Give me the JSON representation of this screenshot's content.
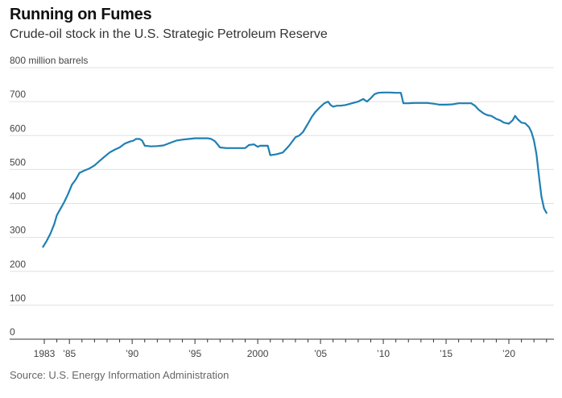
{
  "header": {
    "title": "Running on Fumes",
    "subtitle": "Crude-oil stock in the U.S. Strategic Petroleum Reserve"
  },
  "source": "Source: U.S. Energy Information Administration",
  "colors": {
    "line": "#1f7fb4",
    "grid": "#e0e0e0",
    "axis": "#333333"
  },
  "chart_data": {
    "type": "line",
    "title": "Running on Fumes",
    "subtitle": "Crude-oil stock in the U.S. Strategic Petroleum Reserve",
    "ylabel": "million barrels",
    "ylim": [
      0,
      800
    ],
    "xlim": [
      1982,
      2023.5
    ],
    "grid": "horizontal",
    "y_ticks": [
      {
        "value": 800,
        "label": "800 million barrels"
      },
      {
        "value": 700,
        "label": "700"
      },
      {
        "value": 600,
        "label": "600"
      },
      {
        "value": 500,
        "label": "500"
      },
      {
        "value": 400,
        "label": "400"
      },
      {
        "value": 300,
        "label": "300"
      },
      {
        "value": 200,
        "label": "200"
      },
      {
        "value": 100,
        "label": "100"
      },
      {
        "value": 0,
        "label": "0"
      }
    ],
    "x_ticks": [
      {
        "value": 1983,
        "label": "1983"
      },
      {
        "value": 1985,
        "label": "’85"
      },
      {
        "value": 1990,
        "label": "’90"
      },
      {
        "value": 1995,
        "label": "’95"
      },
      {
        "value": 2000,
        "label": "2000"
      },
      {
        "value": 2005,
        "label": "’05"
      },
      {
        "value": 2010,
        "label": "’10"
      },
      {
        "value": 2015,
        "label": "’15"
      },
      {
        "value": 2020,
        "label": "’20"
      }
    ],
    "series": [
      {
        "x": [
          1982.9,
          1983.2,
          1983.5,
          1983.8,
          1984.0,
          1984.3,
          1984.6,
          1984.9,
          1985.2,
          1985.5,
          1985.8,
          1986.2,
          1986.6,
          1987.0,
          1987.4,
          1987.8,
          1988.2,
          1988.6,
          1989.0,
          1989.4,
          1989.8,
          1990.1,
          1990.3,
          1990.6,
          1990.8,
          1991.0,
          1991.5,
          1992.0,
          1992.5,
          1993.0,
          1993.5,
          1994.0,
          1994.5,
          1995.0,
          1995.5,
          1996.0,
          1996.3,
          1996.6,
          1997.0,
          1997.5,
          1998.0,
          1998.5,
          1999.0,
          1999.3,
          1999.7,
          2000.0,
          2000.2,
          2000.5,
          2000.8,
          2001.0,
          2001.5,
          2002.0,
          2002.5,
          2003.0,
          2003.3,
          2003.6,
          2004.0,
          2004.3,
          2004.6,
          2005.0,
          2005.3,
          2005.6,
          2005.8,
          2006.0,
          2006.3,
          2006.6,
          2007.0,
          2007.5,
          2008.0,
          2008.4,
          2008.7,
          2009.0,
          2009.3,
          2009.6,
          2010.0,
          2010.5,
          2011.0,
          2011.4,
          2011.6,
          2012.0,
          2012.5,
          2013.0,
          2013.5,
          2014.0,
          2014.5,
          2015.0,
          2015.5,
          2016.0,
          2016.5,
          2017.0,
          2017.3,
          2017.6,
          2018.0,
          2018.3,
          2018.6,
          2019.0,
          2019.3,
          2019.6,
          2020.0,
          2020.3,
          2020.5,
          2020.7,
          2021.0,
          2021.3,
          2021.6,
          2021.8,
          2022.0,
          2022.2,
          2022.4,
          2022.6,
          2022.8,
          2023.0
        ],
        "values": [
          272,
          290,
          312,
          340,
          365,
          385,
          405,
          428,
          455,
          470,
          490,
          497,
          503,
          512,
          525,
          538,
          550,
          558,
          565,
          576,
          582,
          585,
          590,
          590,
          585,
          570,
          568,
          569,
          571,
          578,
          585,
          588,
          590,
          592,
          592,
          592,
          590,
          583,
          565,
          563,
          563,
          563,
          563,
          572,
          574,
          567,
          570,
          570,
          570,
          542,
          545,
          550,
          570,
          595,
          600,
          610,
          635,
          655,
          670,
          685,
          695,
          700,
          690,
          685,
          688,
          688,
          690,
          695,
          700,
          708,
          700,
          710,
          722,
          726,
          727,
          727,
          726,
          726,
          695,
          695,
          696,
          696,
          696,
          694,
          691,
          691,
          692,
          695,
          695,
          695,
          688,
          676,
          665,
          660,
          658,
          649,
          645,
          638,
          635,
          645,
          658,
          648,
          638,
          636,
          625,
          610,
          585,
          545,
          480,
          420,
          385,
          372
        ]
      }
    ]
  }
}
